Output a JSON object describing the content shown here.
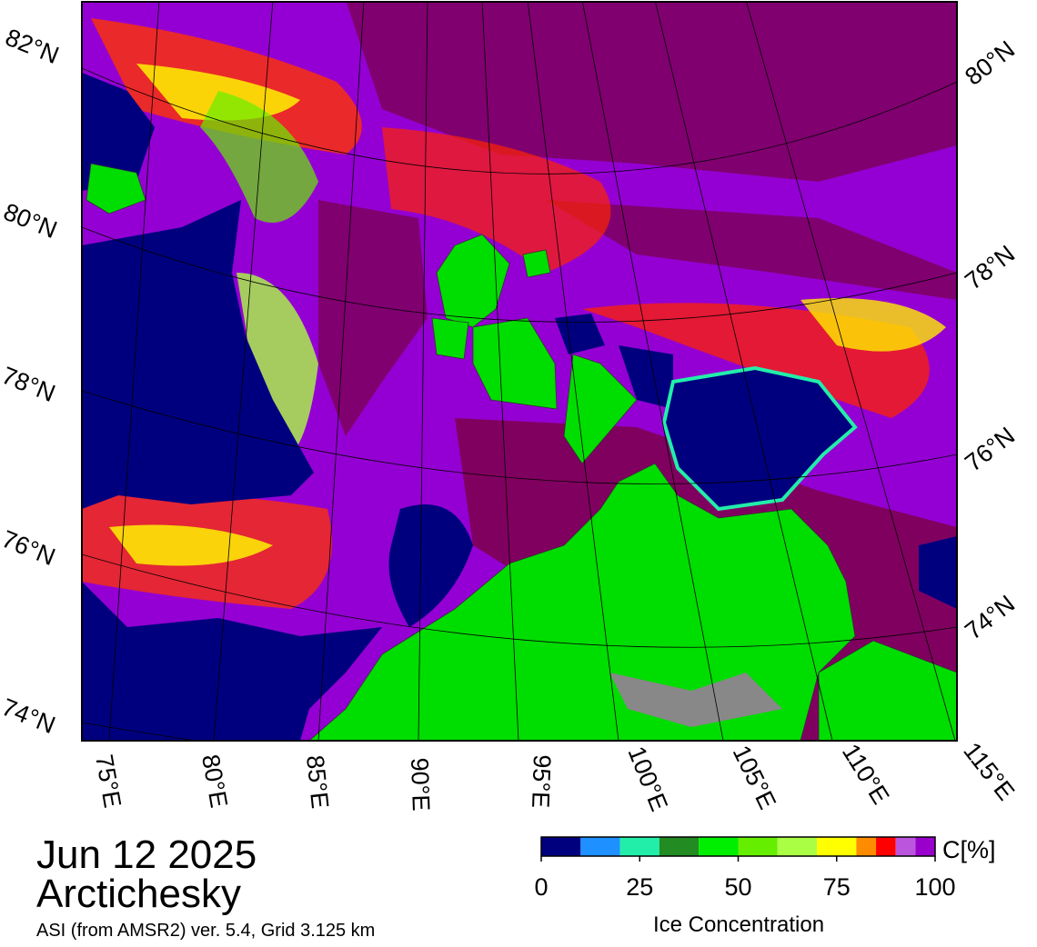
{
  "header": {
    "date": "Jun 12 2025",
    "region": "Arctichesky",
    "source": "ASI (from AMSR2) ver. 5.4,  Grid 3.125 km"
  },
  "map": {
    "lat_labels_left": [
      "82°N",
      "80°N",
      "78°N",
      "76°N",
      "74°N"
    ],
    "lat_labels_right": [
      "80°N",
      "78°N",
      "76°N",
      "74°N"
    ],
    "lon_labels": [
      "75°E",
      "80°E",
      "85°E",
      "90°E",
      "95°E",
      "100°E",
      "105°E",
      "110°E",
      "115°E"
    ]
  },
  "colorbar": {
    "unit": "C[%]",
    "label": "Ice Concentration",
    "bins": [
      0,
      10,
      20,
      30,
      40,
      50,
      60,
      70,
      80,
      85,
      90,
      95,
      100
    ],
    "colors": [
      "#00007f",
      "#1e90ff",
      "#22eeaa",
      "#228b22",
      "#00ee00",
      "#66ee00",
      "#aaff44",
      "#ffff00",
      "#ff8c00",
      "#ff0000",
      "#bb55dd",
      "#9900cc"
    ],
    "lim": [
      0,
      100
    ],
    "ticks": [
      0,
      25,
      50,
      75,
      100
    ]
  }
}
